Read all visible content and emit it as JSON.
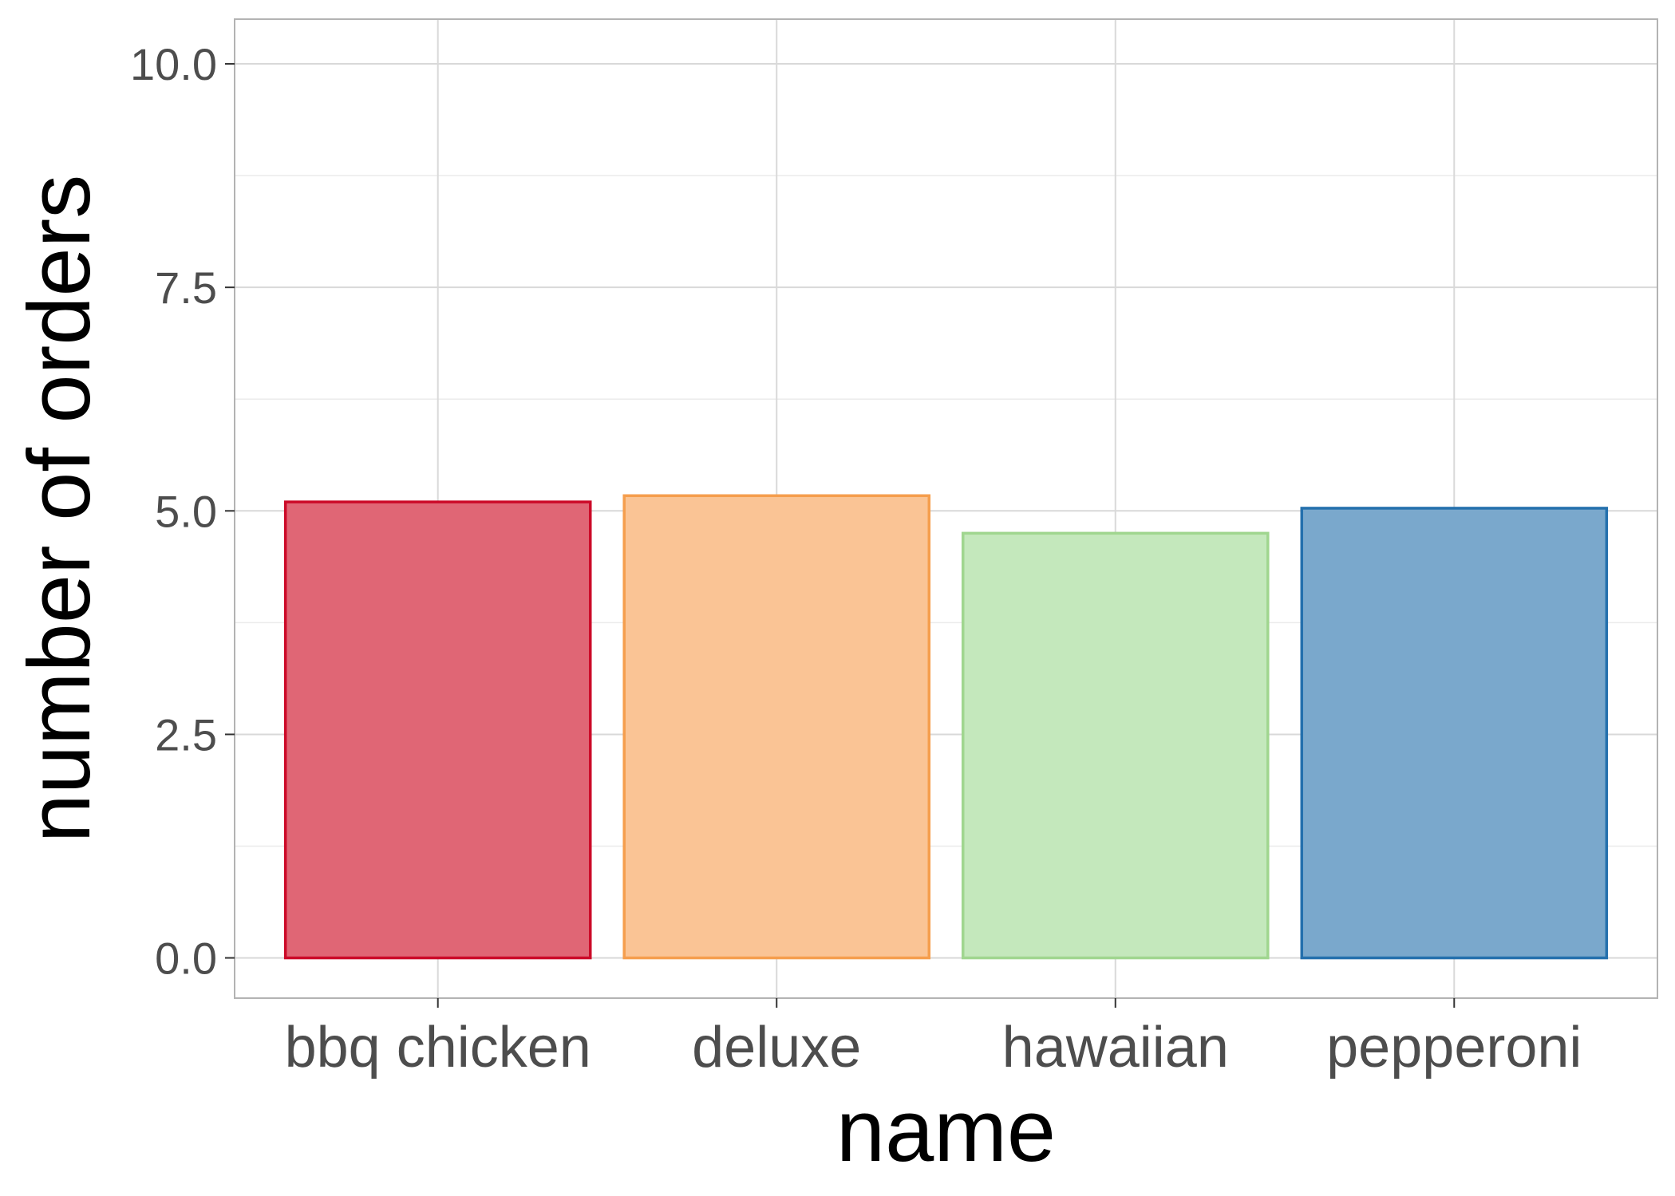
{
  "chart_data": {
    "type": "bar",
    "title": "",
    "xlabel": "name",
    "ylabel": "number of orders",
    "categories": [
      "bbq chicken",
      "deluxe",
      "hawaiian",
      "pepperoni"
    ],
    "values": [
      5.1,
      5.17,
      4.75,
      5.03
    ],
    "colors": {
      "fill": [
        "#e06675",
        "#fac495",
        "#c4e8bc",
        "#7aa8cc"
      ],
      "stroke": [
        "#cc0a28",
        "#f59e4d",
        "#a0d68f",
        "#2470ad"
      ]
    },
    "ylim": [
      -0.45,
      10.5
    ],
    "yticks": [
      0,
      2.5,
      5,
      7.5,
      10
    ],
    "ytick_labels": [
      "0.0",
      "2.5",
      "5.0",
      "7.5",
      "10.0"
    ],
    "grid": true,
    "panel_border_color": "#b3b3b3",
    "grid_color": "#d9d9d9"
  }
}
